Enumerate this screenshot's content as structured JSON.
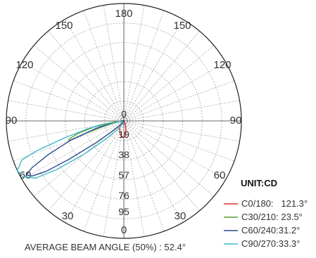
{
  "chart_data": {
    "type": "polar",
    "angular_tick_labels": [
      "180",
      "150",
      "150",
      "120",
      "120",
      "90",
      "90",
      "60",
      "60",
      "30",
      "30",
      "0"
    ],
    "radial_tick_labels": [
      "0",
      "19",
      "38",
      "57",
      "76",
      "95"
    ],
    "rmax": 114,
    "unit_label": "UNIT:CD",
    "series": [
      {
        "name": "C0/180:   121.3°",
        "color": "#e03030",
        "points": [
          [
            -30,
            0
          ],
          [
            -20,
            5
          ],
          [
            -10,
            12
          ],
          [
            0,
            16
          ],
          [
            10,
            15
          ],
          [
            20,
            12
          ],
          [
            30,
            8
          ],
          [
            40,
            5
          ],
          [
            50,
            2
          ],
          [
            60,
            0
          ]
        ]
      },
      {
        "name": "C30/210: 23.5°",
        "color": "#55a030",
        "points": [
          [
            90,
            2
          ],
          [
            80,
            8
          ],
          [
            75,
            20
          ],
          [
            72,
            40
          ],
          [
            70,
            57
          ],
          [
            72,
            55
          ],
          [
            75,
            45
          ],
          [
            80,
            25
          ],
          [
            85,
            8
          ],
          [
            90,
            2
          ]
        ]
      },
      {
        "name": "C60/240:31.2°",
        "color": "#2a4a8a",
        "points": [
          [
            90,
            3
          ],
          [
            80,
            12
          ],
          [
            75,
            28
          ],
          [
            70,
            55
          ],
          [
            66,
            80
          ],
          [
            63,
            100
          ],
          [
            61,
            108
          ],
          [
            59,
            104
          ],
          [
            57,
            90
          ],
          [
            55,
            65
          ],
          [
            52,
            35
          ],
          [
            48,
            15
          ],
          [
            40,
            5
          ],
          [
            20,
            0
          ]
        ]
      },
      {
        "name": "C90/270:33.3°",
        "color": "#40b8c8",
        "points": [
          [
            90,
            3
          ],
          [
            80,
            15
          ],
          [
            78,
            35
          ],
          [
            74,
            60
          ],
          [
            71,
            90
          ],
          [
            69,
            106
          ],
          [
            65,
            114
          ],
          [
            61,
            112
          ],
          [
            57,
            102
          ],
          [
            54,
            80
          ],
          [
            50,
            50
          ],
          [
            45,
            25
          ],
          [
            35,
            10
          ],
          [
            20,
            2
          ]
        ]
      }
    ],
    "footer": "AVERAGE BEAM ANGLE (50%) : 52.4°"
  }
}
